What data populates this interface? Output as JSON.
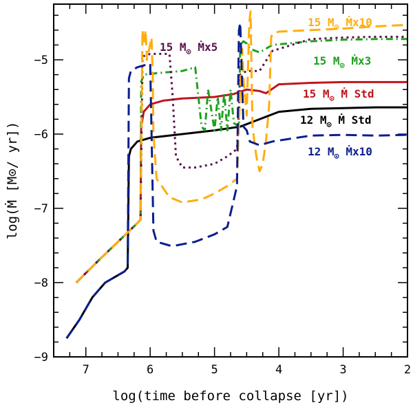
{
  "chart_data": {
    "type": "line",
    "title": "",
    "xlabel": "log(time before collapse [yr])",
    "ylabel": "log(Ṁ [M⊙/ yr])",
    "xlim": [
      7.5,
      2
    ],
    "ylim": [
      -9,
      -4.25
    ],
    "x_ticks": [
      7,
      6,
      5,
      4,
      3,
      2
    ],
    "y_ticks": [
      -9,
      -8,
      -7,
      -6,
      -5
    ],
    "x_tick_labels": [
      "7",
      "6",
      "5",
      "4",
      "3",
      "2"
    ],
    "y_tick_labels": [
      "−9",
      "−8",
      "−7",
      "−6",
      "−5"
    ],
    "series": [
      {
        "name": "12 M⊙ Ṁ Std",
        "label_parts": [
          "12 M",
          "⊙",
          " Ṁ Std"
        ],
        "color": "#000000",
        "dash": "solid",
        "x": [
          7.3,
          7.1,
          6.9,
          6.7,
          6.5,
          6.4,
          6.35,
          6.33,
          6.3,
          6.2,
          6.0,
          5.5,
          5.0,
          4.6,
          4.3,
          4.0,
          3.5,
          3.0,
          2.5,
          2.0
        ],
        "y": [
          -8.75,
          -8.5,
          -8.2,
          -8.0,
          -7.9,
          -7.85,
          -7.8,
          -6.3,
          -6.2,
          -6.1,
          -6.05,
          -6.0,
          -5.95,
          -5.9,
          -5.8,
          -5.7,
          -5.66,
          -5.65,
          -5.64,
          -5.64
        ]
      },
      {
        "name": "15 M⊙ Ṁ Std",
        "label_parts": [
          "15 M",
          "⊙",
          " Ṁ Std"
        ],
        "color": "#c0141e",
        "dash": "solid",
        "x": [
          7.15,
          6.8,
          6.5,
          6.2,
          6.15,
          6.14,
          6.1,
          6.0,
          5.8,
          5.5,
          5.0,
          4.7,
          4.5,
          4.3,
          4.2,
          4.0,
          3.5,
          3.0,
          2.5,
          2.0
        ],
        "y": [
          -8.0,
          -7.7,
          -7.45,
          -7.2,
          -7.15,
          -5.9,
          -5.7,
          -5.6,
          -5.55,
          -5.52,
          -5.5,
          -5.46,
          -5.4,
          -5.42,
          -5.45,
          -5.33,
          -5.31,
          -5.3,
          -5.3,
          -5.3
        ]
      },
      {
        "name": "15 M⊙ Ṁx3",
        "label_parts": [
          "15 M",
          "⊙",
          " Ṁx3"
        ],
        "color": "#1ea01e",
        "dash": "dashdot",
        "x": [
          7.15,
          6.8,
          6.5,
          6.2,
          6.15,
          6.14,
          6.1,
          5.9,
          5.5,
          5.3,
          5.2,
          5.15,
          5.1,
          5.0,
          4.95,
          4.9,
          4.85,
          4.8,
          4.75,
          4.7,
          4.62,
          4.6,
          4.55,
          4.5,
          4.45,
          4.3,
          4.1,
          3.5,
          3.0,
          2.5,
          2.0
        ],
        "y": [
          -8.0,
          -7.7,
          -7.45,
          -7.2,
          -7.15,
          -5.3,
          -5.2,
          -5.18,
          -5.15,
          -5.1,
          -5.9,
          -5.95,
          -5.4,
          -5.95,
          -5.5,
          -5.95,
          -5.45,
          -5.95,
          -5.4,
          -5.85,
          -5.9,
          -4.8,
          -4.75,
          -4.78,
          -4.85,
          -4.9,
          -4.8,
          -4.75,
          -4.73,
          -4.72,
          -4.72
        ]
      },
      {
        "name": "15 M⊙ Ṁx5",
        "label_parts": [
          "15 M",
          "⊙",
          " Ṁx5"
        ],
        "color": "#5a0f4b",
        "dash": "dotted",
        "x": [
          7.15,
          6.8,
          6.5,
          6.2,
          6.15,
          6.12,
          6.1,
          6.0,
          5.9,
          5.8,
          5.7,
          5.65,
          5.6,
          5.5,
          5.3,
          5.0,
          4.8,
          4.65,
          4.62,
          4.6,
          4.5,
          4.3,
          4.1,
          3.5,
          3.0,
          2.5,
          2.0
        ],
        "y": [
          -8.0,
          -7.7,
          -7.45,
          -7.2,
          -7.15,
          -5.0,
          -4.95,
          -4.92,
          -4.92,
          -4.92,
          -4.92,
          -5.5,
          -6.3,
          -6.45,
          -6.45,
          -6.4,
          -6.3,
          -6.2,
          -5.7,
          -5.2,
          -5.15,
          -5.15,
          -4.88,
          -4.72,
          -4.7,
          -4.69,
          -4.69
        ]
      },
      {
        "name": "15 M⊙ Ṁx10",
        "label_parts": [
          "15 M",
          "⊙",
          " Ṁx10"
        ],
        "color": "#ffad0e",
        "dash": "dashed",
        "x": [
          7.15,
          6.8,
          6.5,
          6.2,
          6.15,
          6.12,
          6.1,
          6.07,
          6.05,
          5.98,
          5.96,
          5.95,
          5.9,
          5.7,
          5.5,
          5.2,
          5.0,
          4.8,
          4.65,
          4.6,
          4.57,
          4.55,
          4.5,
          4.46,
          4.44,
          4.41,
          4.35,
          4.3,
          4.25,
          4.2,
          4.15,
          4.12,
          4.1,
          4.0,
          3.5,
          3.0,
          2.5,
          2.0
        ],
        "y": [
          -8.0,
          -7.7,
          -7.45,
          -7.2,
          -7.15,
          -4.6,
          -4.8,
          -4.6,
          -5.0,
          -4.7,
          -5.2,
          -6.0,
          -6.6,
          -6.85,
          -6.92,
          -6.88,
          -6.8,
          -6.7,
          -6.6,
          -5.4,
          -4.85,
          -5.25,
          -5.75,
          -4.5,
          -4.35,
          -5.9,
          -6.3,
          -6.5,
          -6.4,
          -6.1,
          -5.6,
          -4.7,
          -4.65,
          -4.62,
          -4.6,
          -4.58,
          -4.55,
          -4.53
        ]
      },
      {
        "name": "12 M⊙ Ṁx10",
        "label_parts": [
          "12 M",
          "⊙",
          " Ṁx10"
        ],
        "color": "#0a1e8c",
        "dash": "dashed",
        "x": [
          7.3,
          7.1,
          6.9,
          6.7,
          6.5,
          6.4,
          6.35,
          6.33,
          6.3,
          6.2,
          6.0,
          5.95,
          5.9,
          5.7,
          5.6,
          5.3,
          5.0,
          4.8,
          4.65,
          4.62,
          4.6,
          4.55,
          4.5,
          4.45,
          4.3,
          4.1,
          3.5,
          3.0,
          2.5,
          2.0
        ],
        "y": [
          -8.75,
          -8.5,
          -8.2,
          -8.0,
          -7.9,
          -7.85,
          -7.8,
          -5.25,
          -5.15,
          -5.1,
          -5.05,
          -7.3,
          -7.45,
          -7.5,
          -7.5,
          -7.45,
          -7.35,
          -7.25,
          -6.7,
          -4.6,
          -4.5,
          -5.9,
          -5.95,
          -6.1,
          -6.15,
          -6.1,
          -6.02,
          -6.01,
          -6.02,
          -6.01
        ]
      }
    ]
  }
}
